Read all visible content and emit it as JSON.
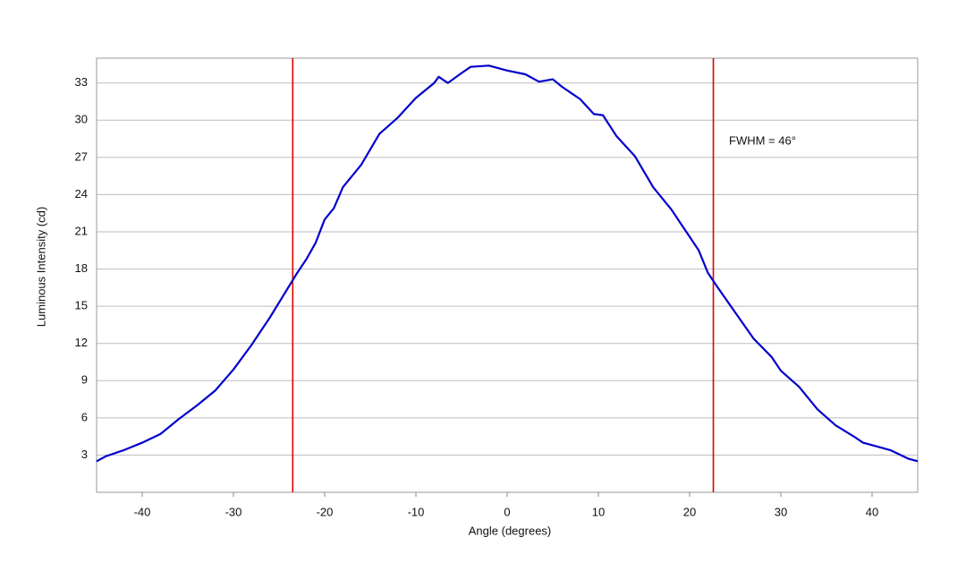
{
  "chart_data": {
    "type": "line",
    "x_label": "Angle (degrees)",
    "y_label": "Luminous Intensity (cd)",
    "annotation": "FWHM = 46°",
    "x": [
      -45,
      -44,
      -42,
      -40,
      -38,
      -36,
      -34,
      -32,
      -30,
      -28,
      -26,
      -24,
      -23,
      -22,
      -21,
      -20,
      -19,
      -18,
      -16,
      -14,
      -12,
      -10,
      -8,
      -7.5,
      -6.5,
      -5,
      -4,
      -2,
      0,
      2,
      3.5,
      5,
      6,
      8,
      9.5,
      10.5,
      12,
      14,
      16,
      18,
      20,
      21,
      22,
      23,
      25,
      27,
      29,
      30,
      32,
      34,
      36,
      38,
      39,
      40,
      42,
      44,
      45
    ],
    "series": [
      {
        "name": "Intensity",
        "color": "#0000cc",
        "values": [
          2.5,
          2.9,
          3.4,
          4.0,
          4.7,
          5.9,
          7.0,
          8.2,
          9.9,
          11.9,
          14.1,
          16.5,
          17.7,
          18.8,
          20.1,
          22.0,
          22.9,
          24.6,
          26.4,
          28.9,
          30.2,
          31.8,
          33.0,
          33.5,
          33.0,
          33.8,
          34.3,
          34.4,
          34.0,
          33.7,
          33.1,
          33.3,
          32.7,
          31.7,
          30.5,
          30.4,
          28.7,
          27.1,
          24.6,
          22.8,
          20.6,
          19.5,
          17.7,
          16.6,
          14.5,
          12.4,
          10.9,
          9.8,
          8.5,
          6.7,
          5.4,
          4.5,
          4.0,
          3.8,
          3.4,
          2.7,
          2.5
        ]
      }
    ],
    "vlines": [
      -23.5,
      22.6
    ],
    "vline_color": "#e00000",
    "xlim": [
      -45,
      45
    ],
    "ylim": [
      0,
      35
    ],
    "xticks": [
      -40,
      -30,
      -20,
      -10,
      0,
      10,
      20,
      30,
      40
    ],
    "yticks": [
      3,
      6,
      9,
      12,
      15,
      18,
      21,
      24,
      27,
      30,
      33
    ],
    "grid": true
  }
}
